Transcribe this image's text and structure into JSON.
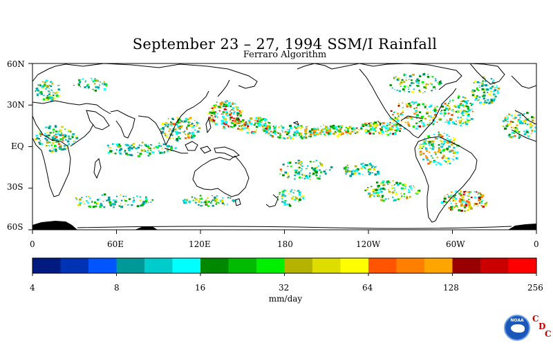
{
  "title": "September 23 – 27, 1994 SSM/I Rainfall",
  "subtitle": "Ferraro Algorithm",
  "y_axis_labels": [
    "60N",
    "30N",
    "EQ",
    "30S",
    "60S"
  ],
  "x_axis_labels": [
    "0",
    "60E",
    "120E",
    "180",
    "120W",
    "60W",
    "0"
  ],
  "colorbar": {
    "tick_labels": [
      "4",
      "8",
      "16",
      "32",
      "64",
      "128",
      "256"
    ],
    "units": "mm/day",
    "colors": [
      "#001a80",
      "#0033b3",
      "#0055ff",
      "#009999",
      "#00cccc",
      "#00ffff",
      "#008800",
      "#00bb00",
      "#00ee00",
      "#b3b300",
      "#dddd00",
      "#ffff00",
      "#ff5500",
      "#ff7f00",
      "#ffa500",
      "#990000",
      "#cc0000",
      "#ff0000"
    ]
  },
  "logo": {
    "text": "NOAA",
    "letters": [
      "C",
      "D",
      "C"
    ]
  },
  "colors": {
    "land_outline": "#000000",
    "polar_ice": "#000000",
    "background": "#ffffff"
  }
}
